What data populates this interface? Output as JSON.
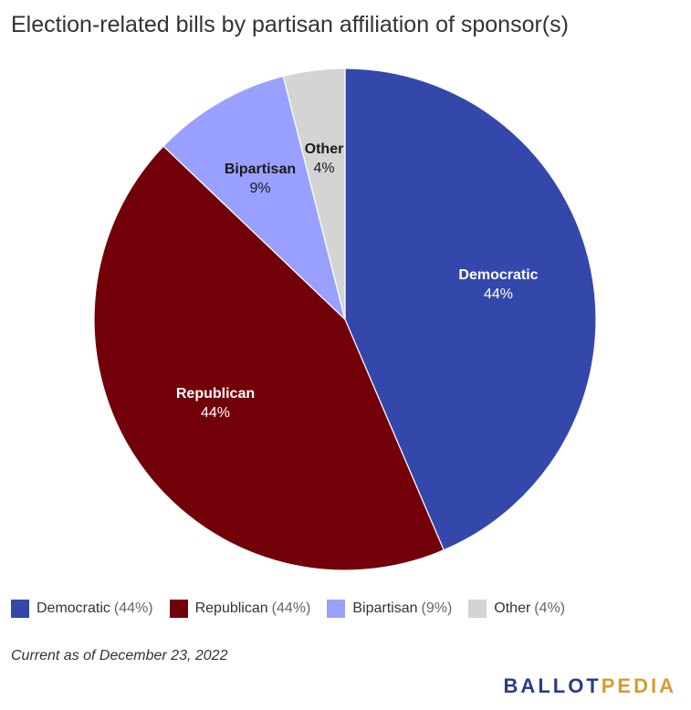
{
  "title": "Election-related bills by partisan affiliation of sponsor(s)",
  "chart_data": {
    "type": "pie",
    "title": "Election-related bills by partisan affiliation of sponsor(s)",
    "slices": [
      {
        "name": "Democratic",
        "value": 44,
        "label": "44%",
        "legend_value": "(44%)",
        "color": "#3447aa",
        "label_color": "#ffffff"
      },
      {
        "name": "Republican",
        "value": 44,
        "label": "44%",
        "legend_value": "(44%)",
        "color": "#720008",
        "label_color": "#ffffff"
      },
      {
        "name": "Bipartisan",
        "value": 9,
        "label": "9%",
        "legend_value": "(9%)",
        "color": "#9aa0ff",
        "label_color": "#1a1a1a"
      },
      {
        "name": "Other",
        "value": 4,
        "label": "4%",
        "legend_value": "(4%)",
        "color": "#d4d4d4",
        "label_color": "#1a1a1a"
      }
    ],
    "legend_position": "bottom"
  },
  "note": "Current as of December 23, 2022",
  "logo": {
    "part1": "BALLOT",
    "part2": "PEDIA"
  }
}
